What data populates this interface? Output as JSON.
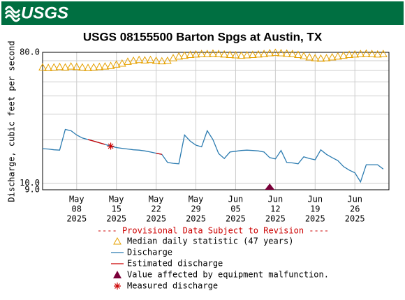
{
  "header": {
    "logo": "USGS"
  },
  "chart_data": {
    "type": "line",
    "title": "USGS 08155500 Barton Spgs at Austin, TX",
    "y_label": "Discharge, cubic feet per second",
    "notice": "---- Provisional Data Subject to Revision ----",
    "log_y": true,
    "grid": true,
    "ylim": [
      9,
      80
    ],
    "yticks": [
      {
        "value": 80,
        "label": "80.0"
      },
      {
        "value": 10,
        "label": "10.0"
      },
      {
        "value": 9,
        "label": "9.0"
      }
    ],
    "y_minor_gridlines": [
      20,
      30,
      40,
      50,
      60,
      70
    ],
    "xlim": [
      "2025-05-02",
      "2025-07-02"
    ],
    "xticks": [
      {
        "value": "2025-05-08",
        "label": [
          "May",
          "08",
          "2025"
        ]
      },
      {
        "value": "2025-05-15",
        "label": [
          "May",
          "15",
          "2025"
        ]
      },
      {
        "value": "2025-05-22",
        "label": [
          "May",
          "22",
          "2025"
        ]
      },
      {
        "value": "2025-05-29",
        "label": [
          "May",
          "29",
          "2025"
        ]
      },
      {
        "value": "2025-06-05",
        "label": [
          "Jun",
          "05",
          "2025"
        ]
      },
      {
        "value": "2025-06-12",
        "label": [
          "Jun",
          "12",
          "2025"
        ]
      },
      {
        "value": "2025-06-19",
        "label": [
          "Jun",
          "19",
          "2025"
        ]
      },
      {
        "value": "2025-06-26",
        "label": [
          "Jun",
          "26",
          "2025"
        ]
      }
    ],
    "x": [
      "2025-05-02",
      "2025-05-03",
      "2025-05-04",
      "2025-05-05",
      "2025-05-06",
      "2025-05-07",
      "2025-05-08",
      "2025-05-09",
      "2025-05-10",
      "2025-05-11",
      "2025-05-12",
      "2025-05-13",
      "2025-05-14",
      "2025-05-15",
      "2025-05-16",
      "2025-05-17",
      "2025-05-18",
      "2025-05-19",
      "2025-05-20",
      "2025-05-21",
      "2025-05-22",
      "2025-05-23",
      "2025-05-24",
      "2025-05-25",
      "2025-05-26",
      "2025-05-27",
      "2025-05-28",
      "2025-05-29",
      "2025-05-30",
      "2025-05-31",
      "2025-06-01",
      "2025-06-02",
      "2025-06-03",
      "2025-06-04",
      "2025-06-05",
      "2025-06-06",
      "2025-06-07",
      "2025-06-08",
      "2025-06-09",
      "2025-06-10",
      "2025-06-11",
      "2025-06-12",
      "2025-06-13",
      "2025-06-14",
      "2025-06-15",
      "2025-06-16",
      "2025-06-17",
      "2025-06-18",
      "2025-06-19",
      "2025-06-20",
      "2025-06-21",
      "2025-06-22",
      "2025-06-23",
      "2025-06-24",
      "2025-06-25",
      "2025-06-26",
      "2025-06-27",
      "2025-06-28",
      "2025-06-29",
      "2025-06-30",
      "2025-07-01"
    ],
    "series": [
      {
        "name": "Median daily statistic (47 years)",
        "color": "#e6a100",
        "marker": "triangle-open",
        "values": [
          63,
          62.5,
          63,
          63.5,
          63,
          64,
          63.5,
          63,
          62.5,
          63,
          63.5,
          64,
          64.5,
          66,
          67,
          69,
          70,
          71,
          70.5,
          71,
          70,
          69.5,
          70,
          73,
          75,
          76,
          77,
          77.5,
          78,
          78,
          78.5,
          78,
          77.5,
          77,
          76.5,
          76,
          76.5,
          77,
          77.5,
          78,
          79,
          79.5,
          79,
          78.5,
          78,
          77,
          75.5,
          74,
          73,
          72.5,
          73,
          74,
          75,
          76,
          77,
          77.5,
          78,
          78.5,
          78,
          77.5,
          78
        ]
      },
      {
        "name": "Discharge",
        "color": "#2b7bb0",
        "marker": "line",
        "values": [
          17.3,
          17.2,
          17.0,
          16.9,
          23.5,
          23.0,
          21.5,
          20.5,
          20.0,
          19.5,
          19.0,
          18.5,
          18.0,
          17.6,
          17.4,
          17.2,
          17.0,
          16.9,
          16.7,
          16.4,
          16.1,
          15.8,
          13.9,
          13.7,
          13.6,
          21.5,
          19.5,
          18.3,
          17.8,
          23.0,
          20.0,
          16.0,
          14.8,
          16.4,
          16.6,
          16.8,
          16.9,
          16.8,
          16.7,
          16.4,
          15.0,
          14.7,
          16.8,
          13.9,
          13.8,
          13.6,
          15.2,
          14.8,
          14.5,
          17.0,
          15.8,
          15.0,
          14.3,
          13.0,
          12.3,
          11.8,
          10.2,
          13.4,
          13.4,
          13.4,
          12.5
        ]
      },
      {
        "name": "Estimated discharge",
        "color": "#cc0000",
        "marker": "line",
        "x": [
          "2025-05-10",
          "2025-05-11",
          "2025-05-12",
          "2025-05-13",
          "2025-05-17",
          "2025-05-22",
          "2025-05-23"
        ],
        "values": [
          20.0,
          19.5,
          19.0,
          18.5,
          null,
          16.1,
          15.8
        ]
      },
      {
        "name": "Value affected by equipment malfunction.",
        "color": "#7a0039",
        "marker": "triangle",
        "x": [
          "2025-06-11"
        ],
        "values": [
          9
        ]
      },
      {
        "name": "Measured discharge",
        "color": "#cc0000",
        "marker": "asterisk",
        "x": [
          "2025-05-14"
        ],
        "values": [
          18
        ]
      }
    ]
  }
}
